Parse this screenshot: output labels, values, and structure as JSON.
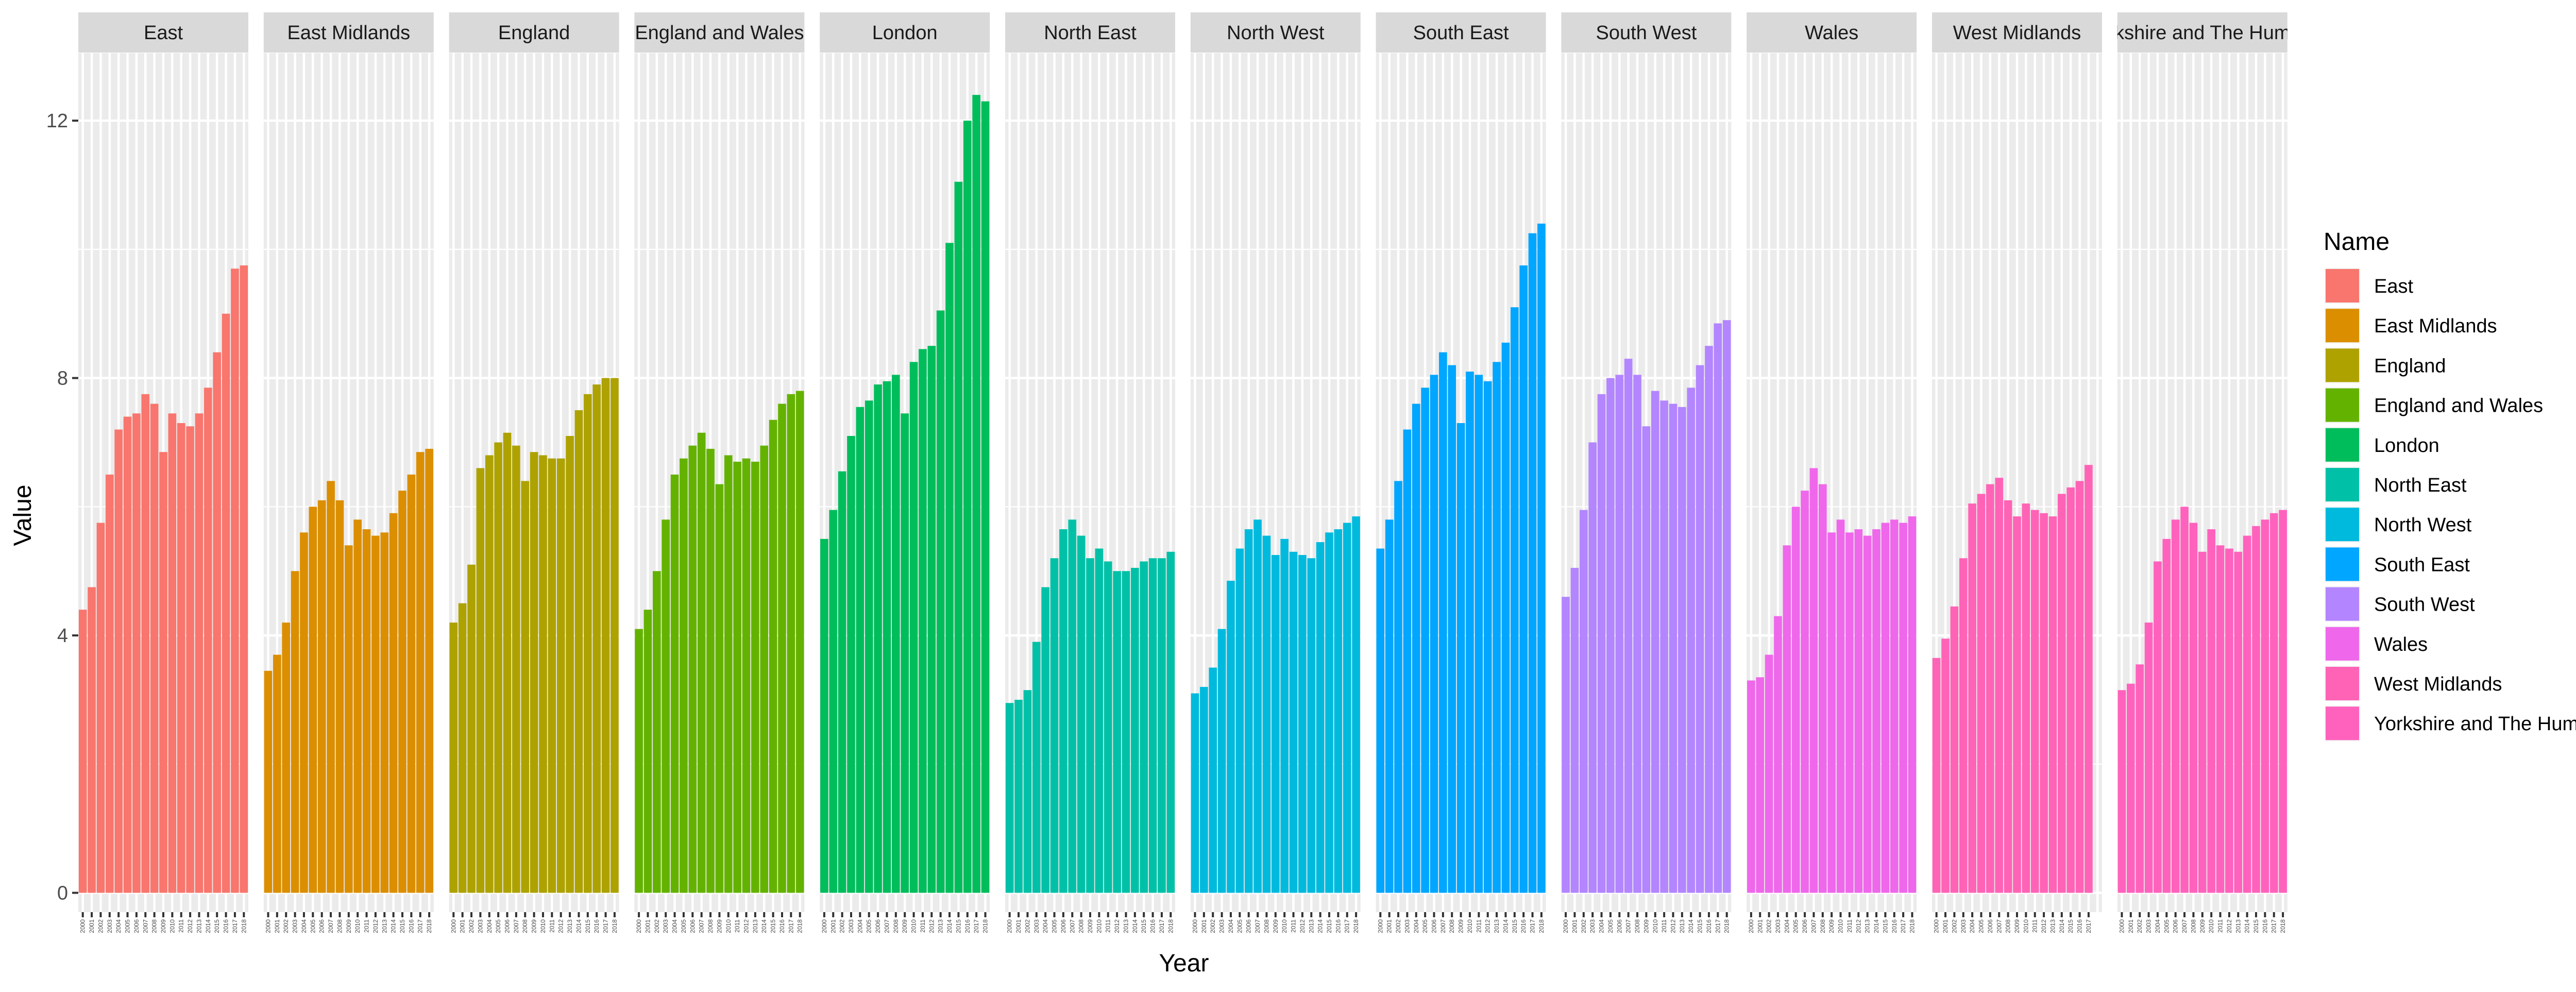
{
  "chart_data": {
    "type": "bar",
    "facet": "Name",
    "xlabel": "Year",
    "ylabel": "Value",
    "ylim": [
      -0.3,
      13.05
    ],
    "yticks": [
      0,
      4,
      8,
      12
    ],
    "legend_title": "Name",
    "legend_position": "right",
    "grid": true,
    "series": [
      {
        "name": "East",
        "strip_label": "East",
        "color": "#F8766D",
        "x": [
          "2000",
          "2001",
          "2002",
          "2003",
          "2004",
          "2005",
          "2006",
          "2007",
          "2008",
          "2009",
          "2010",
          "2011",
          "2012",
          "2013",
          "2014",
          "2015",
          "2016",
          "2017",
          "2018"
        ],
        "values": [
          4.4,
          4.75,
          5.75,
          6.5,
          7.2,
          7.4,
          7.45,
          7.75,
          7.6,
          6.85,
          7.45,
          7.3,
          7.25,
          7.45,
          7.85,
          8.4,
          9.0,
          9.7,
          9.75
        ]
      },
      {
        "name": "East Midlands",
        "strip_label": "East Midlands",
        "color": "#DB8E00",
        "x": [
          "2000",
          "2001",
          "2002",
          "2003",
          "2004",
          "2005",
          "2006",
          "2007",
          "2008",
          "2009",
          "2010",
          "2011",
          "2012",
          "2013",
          "2014",
          "2015",
          "2016",
          "2017",
          "2018"
        ],
        "values": [
          3.45,
          3.7,
          4.2,
          5.0,
          5.6,
          6.0,
          6.1,
          6.4,
          6.1,
          5.4,
          5.8,
          5.65,
          5.55,
          5.6,
          5.9,
          6.25,
          6.5,
          6.85,
          6.9
        ]
      },
      {
        "name": "England",
        "strip_label": "England",
        "color": "#AEA200",
        "x": [
          "2000",
          "2001",
          "2002",
          "2003",
          "2004",
          "2005",
          "2006",
          "2007",
          "2008",
          "2009",
          "2010",
          "2011",
          "2012",
          "2013",
          "2014",
          "2015",
          "2016",
          "2017",
          "2018"
        ],
        "values": [
          4.2,
          4.5,
          5.1,
          6.6,
          6.8,
          7.0,
          7.15,
          6.95,
          6.4,
          6.85,
          6.8,
          6.75,
          6.75,
          7.1,
          7.5,
          7.75,
          7.9,
          8.0,
          8.0
        ]
      },
      {
        "name": "England and Wales",
        "strip_label": "England and Wales",
        "color": "#64B200",
        "x": [
          "2000",
          "2001",
          "2002",
          "2003",
          "2004",
          "2005",
          "2006",
          "2007",
          "2008",
          "2009",
          "2010",
          "2011",
          "2012",
          "2013",
          "2014",
          "2015",
          "2016",
          "2017",
          "2018"
        ],
        "values": [
          4.1,
          4.4,
          5.0,
          5.8,
          6.5,
          6.75,
          6.95,
          7.15,
          6.9,
          6.35,
          6.8,
          6.7,
          6.75,
          6.7,
          6.95,
          7.35,
          7.6,
          7.75,
          7.8
        ]
      },
      {
        "name": "London",
        "strip_label": "London",
        "color": "#00BD5C",
        "x": [
          "2000",
          "2001",
          "2002",
          "2003",
          "2004",
          "2005",
          "2006",
          "2007",
          "2008",
          "2009",
          "2010",
          "2011",
          "2012",
          "2013",
          "2014",
          "2015",
          "2016",
          "2017",
          "2018"
        ],
        "values": [
          5.5,
          5.95,
          6.55,
          7.1,
          7.55,
          7.65,
          7.9,
          7.95,
          8.05,
          7.45,
          8.25,
          8.45,
          8.5,
          9.05,
          10.1,
          11.05,
          12.0,
          12.4,
          12.3
        ]
      },
      {
        "name": "North East",
        "strip_label": "North East",
        "color": "#00C1A7",
        "x": [
          "2000",
          "2001",
          "2002",
          "2003",
          "2004",
          "2005",
          "2006",
          "2007",
          "2008",
          "2009",
          "2010",
          "2011",
          "2012",
          "2013",
          "2014",
          "2015",
          "2016",
          "2017",
          "2018"
        ],
        "values": [
          2.95,
          3.0,
          3.15,
          3.9,
          4.75,
          5.2,
          5.65,
          5.8,
          5.55,
          5.2,
          5.35,
          5.15,
          5.0,
          5.0,
          5.05,
          5.15,
          5.2,
          5.2,
          5.3
        ]
      },
      {
        "name": "North West",
        "strip_label": "North West",
        "color": "#00BADE",
        "x": [
          "2000",
          "2001",
          "2002",
          "2003",
          "2004",
          "2005",
          "2006",
          "2007",
          "2008",
          "2009",
          "2010",
          "2011",
          "2012",
          "2013",
          "2014",
          "2015",
          "2016",
          "2017",
          "2018"
        ],
        "values": [
          3.1,
          3.2,
          3.5,
          4.1,
          4.85,
          5.35,
          5.65,
          5.8,
          5.55,
          5.25,
          5.5,
          5.3,
          5.25,
          5.2,
          5.45,
          5.6,
          5.65,
          5.75,
          5.85
        ]
      },
      {
        "name": "South East",
        "strip_label": "South East",
        "color": "#00A6FF",
        "x": [
          "2000",
          "2001",
          "2002",
          "2003",
          "2004",
          "2005",
          "2006",
          "2007",
          "2008",
          "2009",
          "2010",
          "2011",
          "2012",
          "2013",
          "2014",
          "2015",
          "2016",
          "2017",
          "2018"
        ],
        "values": [
          5.35,
          5.8,
          6.4,
          7.2,
          7.6,
          7.85,
          8.05,
          8.4,
          8.2,
          7.3,
          8.1,
          8.05,
          7.95,
          8.25,
          8.55,
          9.1,
          9.75,
          10.25,
          10.4
        ]
      },
      {
        "name": "South West",
        "strip_label": "South West",
        "color": "#B385FF",
        "x": [
          "2000",
          "2001",
          "2002",
          "2003",
          "2004",
          "2005",
          "2006",
          "2007",
          "2008",
          "2009",
          "2010",
          "2011",
          "2012",
          "2013",
          "2014",
          "2015",
          "2016",
          "2017",
          "2018"
        ],
        "values": [
          4.6,
          5.05,
          5.95,
          7.0,
          7.75,
          8.0,
          8.05,
          8.3,
          8.05,
          7.25,
          7.8,
          7.65,
          7.6,
          7.55,
          7.85,
          8.2,
          8.5,
          8.85,
          8.9
        ]
      },
      {
        "name": "Wales",
        "strip_label": "Wales",
        "color": "#EF67EB",
        "x": [
          "2000",
          "2001",
          "2002",
          "2003",
          "2004",
          "2005",
          "2006",
          "2007",
          "2008",
          "2009",
          "2010",
          "2011",
          "2012",
          "2013",
          "2014",
          "2015",
          "2016",
          "2017",
          "2018"
        ],
        "values": [
          3.3,
          3.35,
          3.7,
          4.3,
          5.4,
          6.0,
          6.25,
          6.6,
          6.35,
          5.6,
          5.8,
          5.6,
          5.65,
          5.55,
          5.65,
          5.75,
          5.8,
          5.75,
          5.85
        ]
      },
      {
        "name": "West Midlands",
        "strip_label": "West Midlands",
        "color": "#FF63B6",
        "x": [
          "2000",
          "2001",
          "2002",
          "2003",
          "2004",
          "2005",
          "2006",
          "2007",
          "2008",
          "2009",
          "2010",
          "2011",
          "2012",
          "2013",
          "2014",
          "2015",
          "2016",
          "2017"
        ],
        "values": [
          3.65,
          3.95,
          4.45,
          5.2,
          6.05,
          6.2,
          6.35,
          6.45,
          6.1,
          5.85,
          6.05,
          5.95,
          5.9,
          5.85,
          6.2,
          6.3,
          6.4,
          6.65
        ]
      },
      {
        "name": "Yorkshire and The Humber",
        "strip_label": "kshire and The Hum",
        "color": "#FF62BC",
        "x": [
          "2000",
          "2001",
          "2002",
          "2003",
          "2004",
          "2005",
          "2006",
          "2007",
          "2008",
          "2009",
          "2010",
          "2011",
          "2012",
          "2013",
          "2014",
          "2015",
          "2016",
          "2017",
          "2018"
        ],
        "values": [
          3.15,
          3.25,
          3.55,
          4.2,
          5.15,
          5.5,
          5.8,
          6.0,
          5.75,
          5.3,
          5.65,
          5.4,
          5.35,
          5.3,
          5.55,
          5.7,
          5.8,
          5.9,
          5.95
        ]
      }
    ]
  }
}
